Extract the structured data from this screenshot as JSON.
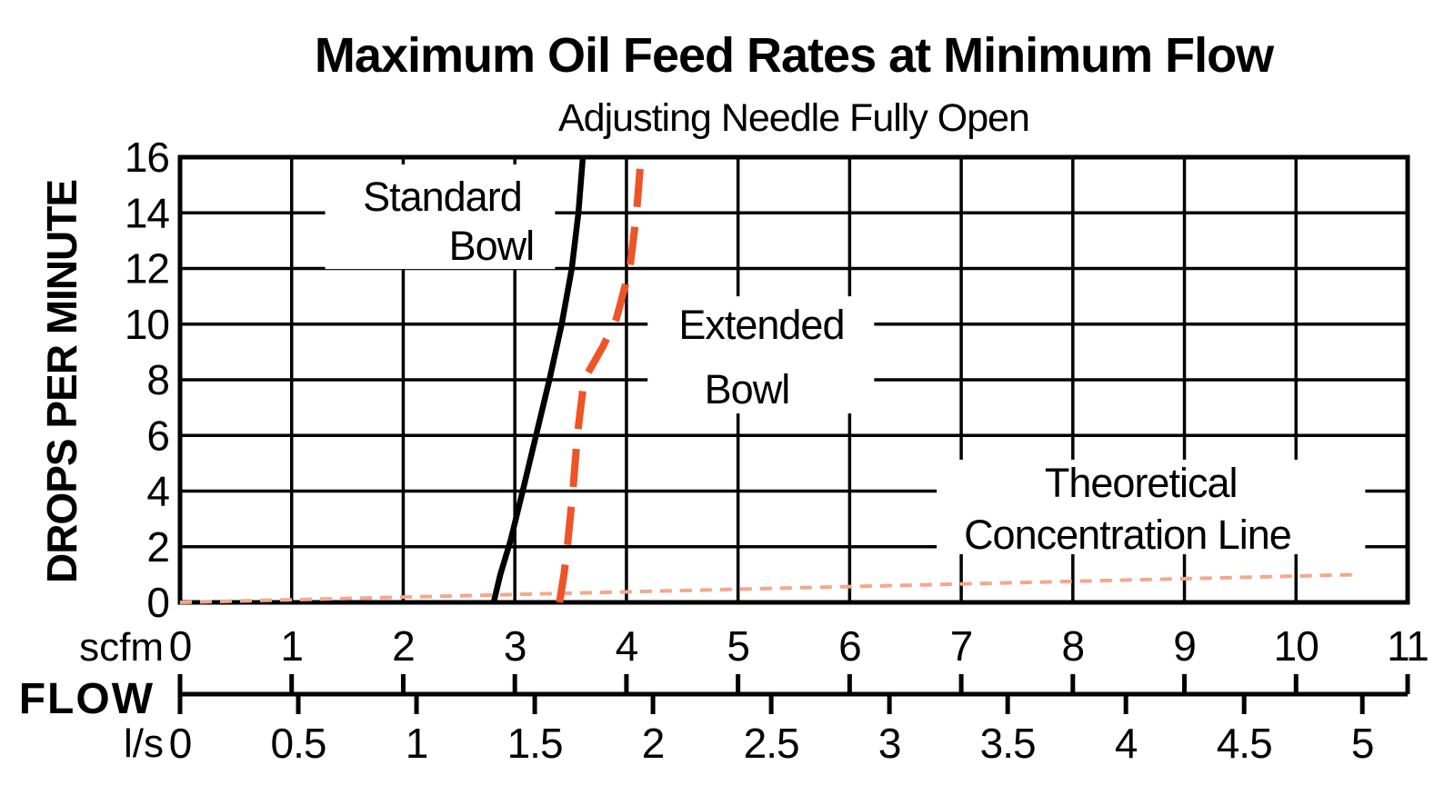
{
  "chart_data": {
    "type": "line",
    "title": "Maximum Oil Feed Rates at Minimum Flow",
    "subtitle": "Adjusting Needle Fully Open",
    "ylabel": "DROPS PER MINUTE",
    "grid": true,
    "y_axis": {
      "range": [
        0,
        16
      ],
      "ticks": [
        0,
        2,
        4,
        6,
        8,
        10,
        12,
        14,
        16
      ]
    },
    "x_axis": {
      "flow_label": "FLOW",
      "primary_unit": "scfm",
      "primary_range": [
        0,
        11
      ],
      "primary_ticks": [
        0,
        1,
        2,
        3,
        4,
        5,
        6,
        7,
        8,
        9,
        10,
        11
      ],
      "secondary_unit": "l/s",
      "secondary_tick_labels": [
        "0",
        "0.5",
        "1",
        "1.5",
        "2",
        "2.5",
        "3",
        "3.5",
        "4",
        "4.5",
        "5"
      ],
      "secondary_tick_values": [
        0,
        0.5,
        1,
        1.5,
        2,
        2.5,
        3,
        3.5,
        4,
        4.5,
        5
      ],
      "scfm_per_ls": 2.11888
    },
    "series": [
      {
        "name": "Theoretical Concentration Line",
        "style": "dotted",
        "color": "#F3A78D",
        "points_scfm_dpm": [
          [
            0,
            0
          ],
          [
            10.57,
            1.0
          ]
        ],
        "label": {
          "lines": [
            "Theoretical",
            "Concentration Line"
          ],
          "line_positions_scfm_dpm": [
            [
              8.61,
              4.31
            ],
            [
              8.49,
              2.45
            ]
          ],
          "box_scfm_dpm": [
            [
              6.78,
              5.13
            ],
            [
              10.62,
              1.73
            ]
          ]
        }
      },
      {
        "name": "Standard Bowl",
        "style": "solid",
        "color": "#000000",
        "points_scfm_dpm": [
          [
            2.81,
            0
          ],
          [
            2.87,
            1
          ],
          [
            2.96,
            2.2
          ],
          [
            3.07,
            4
          ],
          [
            3.19,
            6
          ],
          [
            3.31,
            8
          ],
          [
            3.42,
            10
          ],
          [
            3.51,
            12
          ],
          [
            3.57,
            14
          ],
          [
            3.61,
            16
          ]
        ],
        "label": {
          "lines": [
            "Standard",
            "Bowl"
          ],
          "line_positions_scfm_dpm": [
            [
              2.35,
              14.6
            ],
            [
              2.79,
              12.83
            ]
          ],
          "box_scfm_dpm": [
            [
              1.3,
              15.74
            ],
            [
              3.36,
              11.98
            ]
          ]
        }
      },
      {
        "name": "Extended Bowl",
        "style": "dashed",
        "color": "#EE5426",
        "points_scfm_dpm": [
          [
            3.4,
            0
          ],
          [
            3.44,
            1
          ],
          [
            3.47,
            2
          ],
          [
            3.52,
            4
          ],
          [
            3.56,
            6
          ],
          [
            3.62,
            8
          ],
          [
            3.79,
            9.2
          ],
          [
            3.91,
            10.2
          ],
          [
            4.03,
            12
          ],
          [
            4.09,
            14
          ],
          [
            4.13,
            16
          ]
        ],
        "label": {
          "lines": [
            "Extended",
            "Bowl"
          ],
          "line_positions_scfm_dpm": [
            [
              5.21,
              9.99
            ],
            [
              5.08,
              7.67
            ]
          ],
          "box_scfm_dpm": [
            [
              4.19,
              11.0
            ],
            [
              6.22,
              6.79
            ]
          ]
        }
      }
    ]
  }
}
